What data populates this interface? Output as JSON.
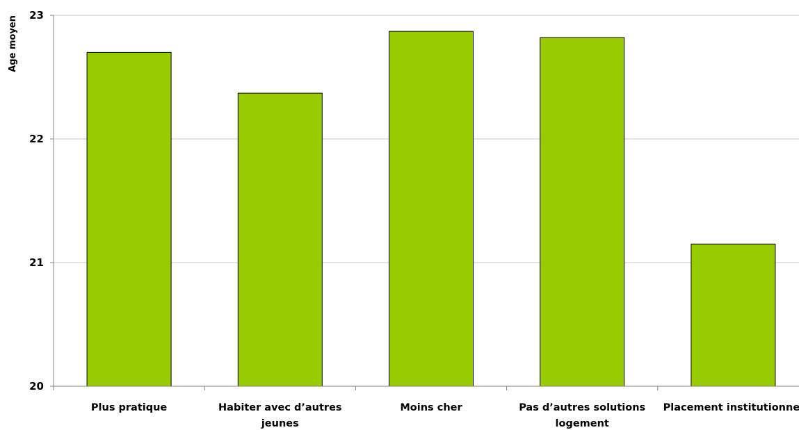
{
  "chart_data": {
    "type": "bar",
    "categories": [
      "Plus pratique",
      "Habiter avec d'autres jeunes",
      "Moins cher",
      "Pas d'autres solutions logement",
      "Placement institutionnel"
    ],
    "category_lines": [
      [
        "Plus pratique"
      ],
      [
        "Habiter avec d’autres",
        "jeunes"
      ],
      [
        "Moins cher"
      ],
      [
        "Pas d’autres solutions",
        "logement"
      ],
      [
        "Placement institutionnel"
      ]
    ],
    "values": [
      22.7,
      22.37,
      22.87,
      22.82,
      21.15
    ],
    "ylabel": "Age moyen",
    "ylim": [
      20,
      23
    ],
    "yticks": [
      20,
      21,
      22,
      23
    ],
    "grid": true,
    "bar_color": "#99cc00",
    "bar_edge_color": "#000000"
  }
}
